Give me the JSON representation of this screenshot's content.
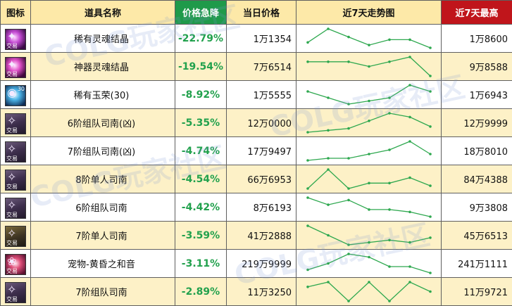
{
  "headers": {
    "icon": "图标",
    "name": "道具名称",
    "change": "价格急降",
    "price": "当日价格",
    "trend": "近7天走势图",
    "high": "近7天最高"
  },
  "colors": {
    "header_bg": "#fde9a8",
    "change_header_bg": "#1f9a4a",
    "high_header_bg": "#c0151b",
    "row_alt_bg": "#fdf1c7",
    "change_text": "#22a14d",
    "sparkline": "#2ea84f"
  },
  "watermark": {
    "text": "COLG玩家社区"
  },
  "rows": [
    {
      "icon": "purple-soul-crystal-icon",
      "tag": "交易",
      "corner": "",
      "name": "稀有灵魂结晶",
      "change": "-22.79%",
      "price": "1万1354",
      "high": "1万8600",
      "trend": [
        2,
        7,
        4,
        1,
        3,
        3,
        0
      ]
    },
    {
      "icon": "magenta-soul-crystal-icon",
      "tag": "交易",
      "corner": "",
      "name": "神器灵魂结晶",
      "change": "-19.54%",
      "price": "7万6514",
      "high": "9万8588",
      "trend": [
        3,
        3,
        3,
        2,
        3,
        4,
        0
      ]
    },
    {
      "icon": "blue-jade-icon",
      "tag": "",
      "corner": "30",
      "name": "稀有玉荣(30)",
      "change": "-8.92%",
      "price": "1万5555",
      "high": "1万6943",
      "trend": [
        4,
        2,
        0,
        1,
        2,
        6,
        4
      ]
    },
    {
      "icon": "rune-compass-icon",
      "tag": "交易",
      "corner": "",
      "name": "6阶组队司南(凶)",
      "change": "-5.35%",
      "price": "12万0000",
      "high": "12万9999",
      "trend": [
        0,
        1,
        2,
        6,
        10,
        8,
        3
      ]
    },
    {
      "icon": "rune-compass-icon",
      "tag": "交易",
      "corner": "",
      "name": "7阶组队司南(凶)",
      "change": "-4.74%",
      "price": "17万9497",
      "high": "18万8010",
      "trend": [
        0,
        1,
        1,
        3,
        5,
        9,
        3
      ]
    },
    {
      "icon": "rune-compass-icon",
      "tag": "交易",
      "corner": "",
      "name": "8阶单人司南",
      "change": "-4.54%",
      "price": "66万6953",
      "high": "84万4388",
      "trend": [
        1,
        8,
        1,
        3,
        3,
        5,
        2
      ]
    },
    {
      "icon": "rune-compass-icon",
      "tag": "交易",
      "corner": "",
      "name": "6阶组队司南",
      "change": "-4.42%",
      "price": "8万6193",
      "high": "9万3808",
      "trend": [
        8,
        5,
        7,
        3,
        3,
        2,
        0
      ]
    },
    {
      "icon": "rune-compass-gold-icon",
      "tag": "交易",
      "corner": "",
      "name": "7阶单人司南",
      "change": "-3.59%",
      "price": "41万2888",
      "high": "45万6513",
      "trend": [
        8,
        4,
        0,
        1,
        2,
        1,
        3
      ]
    },
    {
      "icon": "pet-orb-icon",
      "tag": "交易",
      "corner": "",
      "name": "宠物-黄昏之和音",
      "change": "-3.11%",
      "price": "219万9999",
      "high": "241万1111",
      "trend": [
        3,
        5,
        8,
        7,
        4,
        4,
        2
      ]
    },
    {
      "icon": "rune-compass-icon",
      "tag": "交易",
      "corner": "",
      "name": "7阶组队司南",
      "change": "-2.89%",
      "price": "11万3250",
      "high": "11万9721",
      "trend": [
        4,
        5,
        1,
        5,
        1,
        5,
        3
      ]
    }
  ]
}
